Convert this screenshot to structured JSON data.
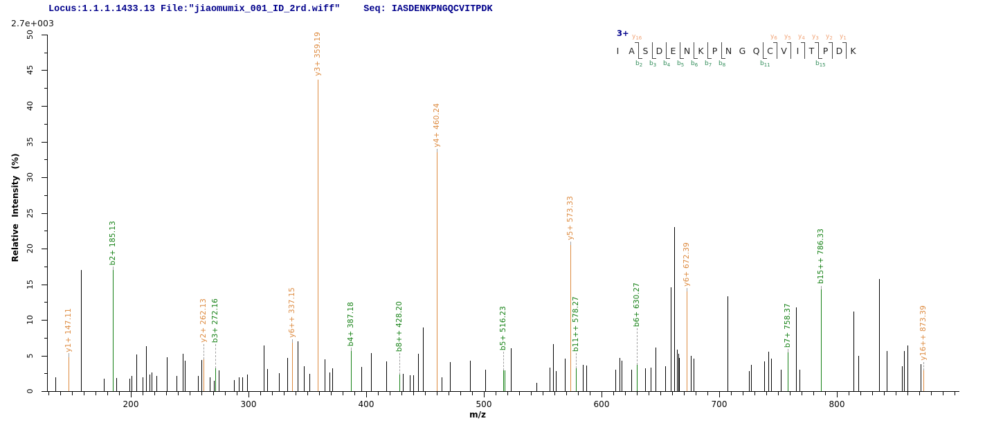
{
  "header": {
    "locus_file": "Locus:1.1.1.1433.13 File:\"jiaomumix_001_ID_2rd.wiff\"",
    "seq_label": "Seq: IASDENKPNGQCVITPDK"
  },
  "colors": {
    "header_text": "#00008b",
    "y_ion": "#dd8a3f",
    "b_ion": "#148014",
    "peak_black": "#000000",
    "seq_y_label": "#f0a173",
    "seq_b_label": "#2e8b57",
    "leader": "#a0a0a0"
  },
  "chart_data": {
    "type": "bar",
    "subtype": "ms2-mass-spectrum",
    "title": "",
    "xlabel": "m/z",
    "ylabel": "Relative Intensity (%)",
    "y_scale_note": "2.7e+003",
    "xlim": [
      129,
      904
    ],
    "ylim": [
      0,
      50
    ],
    "x_label_ticks": [
      200,
      300,
      400,
      500,
      600,
      700,
      800
    ],
    "x_minor_from": 130,
    "x_minor_to": 900,
    "x_minor_step": 10,
    "y_major_step": 5,
    "y_minor_step": 2.5,
    "legend": "orange = y ions, green = b ions, black = unassigned",
    "annotated_peaks": [
      {
        "label": "y1+ 147.11",
        "mz": 147.11,
        "pct": 4.8,
        "label_pct": 5.3,
        "type": "y"
      },
      {
        "label": "b2+ 185.13",
        "mz": 185.13,
        "pct": 17.0,
        "label_pct": 17.5,
        "type": "b"
      },
      {
        "label": "y2+ 262.13",
        "mz": 262.13,
        "pct": 4.5,
        "label_pct": 6.6,
        "type": "y"
      },
      {
        "label": "b3+ 272.16",
        "mz": 272.16,
        "pct": 3.2,
        "label_pct": 6.6,
        "type": "b"
      },
      {
        "label": "y6++ 337.15",
        "mz": 337.15,
        "pct": 6.8,
        "label_pct": 7.3,
        "type": "y"
      },
      {
        "label": "y3+ 359.19",
        "mz": 359.19,
        "pct": 43.7,
        "label_pct": 44.0,
        "type": "y"
      },
      {
        "label": "b4+ 387.18",
        "mz": 387.18,
        "pct": 5.6,
        "label_pct": 6.1,
        "type": "b"
      },
      {
        "label": "b8++ 428.20",
        "mz": 428.2,
        "pct": 2.3,
        "label_pct": 5.3,
        "type": "b"
      },
      {
        "label": "y4+ 460.24",
        "mz": 460.24,
        "pct": 33.5,
        "label_pct": 34.0,
        "type": "y"
      },
      {
        "label": "b5+ 516.23",
        "mz": 516.23,
        "pct": 2.9,
        "label_pct": 5.5,
        "type": "b"
      },
      {
        "label": "",
        "mz": 517.8,
        "pct": 2.9,
        "label_pct": 2.9,
        "type": "b"
      },
      {
        "label": "y5+ 573.33",
        "mz": 573.33,
        "pct": 20.5,
        "label_pct": 21.0,
        "type": "y"
      },
      {
        "label": "b11++ 578.27",
        "mz": 578.27,
        "pct": 3.2,
        "label_pct": 5.3,
        "type": "b"
      },
      {
        "label": "b6+ 630.27",
        "mz": 630.27,
        "pct": 3.7,
        "label_pct": 8.8,
        "type": "b"
      },
      {
        "label": "y6+ 672.39",
        "mz": 672.39,
        "pct": 14.0,
        "label_pct": 14.5,
        "type": "y"
      },
      {
        "label": "b7+ 758.37",
        "mz": 758.37,
        "pct": 5.4,
        "label_pct": 5.9,
        "type": "b"
      },
      {
        "label": "b15++ 786.33",
        "mz": 786.33,
        "pct": 14.3,
        "label_pct": 14.8,
        "type": "b"
      },
      {
        "label": "y16++ 873.39",
        "mz": 873.39,
        "pct": 2.9,
        "label_pct": 4.1,
        "type": "y"
      }
    ],
    "peaks": [
      [
        136,
        1.9
      ],
      [
        158,
        17.0
      ],
      [
        177,
        1.7
      ],
      [
        188,
        1.8
      ],
      [
        199,
        1.7
      ],
      [
        201,
        2.1
      ],
      [
        205,
        5.1
      ],
      [
        210,
        1.9
      ],
      [
        213,
        6.3
      ],
      [
        216,
        2.3
      ],
      [
        218,
        2.6
      ],
      [
        222,
        2.1
      ],
      [
        231,
        4.8
      ],
      [
        239,
        2.1
      ],
      [
        244,
        5.2
      ],
      [
        246,
        4.3
      ],
      [
        257,
        2.1
      ],
      [
        260,
        4.4
      ],
      [
        267,
        1.9
      ],
      [
        271,
        1.5
      ],
      [
        275,
        2.9
      ],
      [
        288,
        1.6
      ],
      [
        292,
        1.9
      ],
      [
        295,
        1.9
      ],
      [
        299,
        2.3
      ],
      [
        313,
        6.4
      ],
      [
        316,
        3.1
      ],
      [
        326,
        2.5
      ],
      [
        333,
        4.7
      ],
      [
        342,
        7.0
      ],
      [
        347,
        3.5
      ],
      [
        352,
        2.4
      ],
      [
        365,
        4.5
      ],
      [
        369,
        2.6
      ],
      [
        371,
        3.2
      ],
      [
        396,
        3.4
      ],
      [
        404,
        5.3
      ],
      [
        417,
        4.2
      ],
      [
        431,
        2.4
      ],
      [
        437,
        2.2
      ],
      [
        440,
        2.2
      ],
      [
        444,
        5.2
      ],
      [
        448,
        8.9
      ],
      [
        464,
        1.9
      ],
      [
        471,
        4.1
      ],
      [
        488,
        4.3
      ],
      [
        501,
        3.0
      ],
      [
        523,
        6.0
      ],
      [
        545,
        1.2
      ],
      [
        556,
        3.3
      ],
      [
        559,
        6.6
      ],
      [
        561,
        2.8
      ],
      [
        569,
        4.6
      ],
      [
        584,
        3.7
      ],
      [
        587,
        3.6
      ],
      [
        612,
        3.0
      ],
      [
        615,
        4.7
      ],
      [
        617,
        4.3
      ],
      [
        625,
        3.0
      ],
      [
        637,
        3.2
      ],
      [
        642,
        3.3
      ],
      [
        646,
        6.1
      ],
      [
        654,
        3.5
      ],
      [
        659,
        14.6
      ],
      [
        662,
        23.0
      ],
      [
        664,
        5.8
      ],
      [
        665,
        5.2
      ],
      [
        666,
        4.7
      ],
      [
        676,
        5.0
      ],
      [
        678,
        4.6
      ],
      [
        707,
        13.3
      ],
      [
        725,
        2.8
      ],
      [
        727,
        3.7
      ],
      [
        738,
        4.2
      ],
      [
        742,
        5.5
      ],
      [
        744,
        4.6
      ],
      [
        752,
        3.0
      ],
      [
        765,
        11.7
      ],
      [
        768,
        3.0
      ],
      [
        814,
        11.2
      ],
      [
        818,
        5.0
      ],
      [
        836,
        15.7
      ],
      [
        842,
        5.6
      ],
      [
        855,
        3.5
      ],
      [
        857,
        5.6
      ],
      [
        860,
        6.4
      ],
      [
        871,
        3.8
      ]
    ]
  },
  "sequence": {
    "charge": "3+",
    "residues": [
      "I",
      "A",
      "S",
      "D",
      "E",
      "N",
      "K",
      "P",
      "N",
      "G",
      "Q",
      "C",
      "V",
      "I",
      "T",
      "P",
      "D",
      "K"
    ],
    "cleavages": [
      {
        "after": 2,
        "b": 2,
        "y": 16
      },
      {
        "after": 3,
        "b": 3
      },
      {
        "after": 4,
        "b": 4
      },
      {
        "after": 5,
        "b": 5
      },
      {
        "after": 6,
        "b": 6
      },
      {
        "after": 7,
        "b": 7
      },
      {
        "after": 8,
        "b": 8
      },
      {
        "after": 11,
        "b": 11
      },
      {
        "after": 12,
        "y": 6
      },
      {
        "after": 13,
        "y": 5
      },
      {
        "after": 14,
        "y": 4
      },
      {
        "after": 15,
        "b": 15,
        "y": 3
      },
      {
        "after": 16,
        "y": 2
      },
      {
        "after": 17,
        "y": 1
      }
    ]
  }
}
